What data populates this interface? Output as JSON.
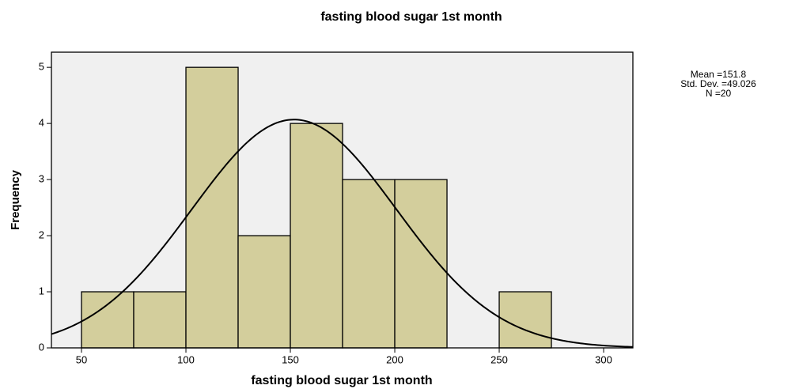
{
  "chart_data": {
    "type": "histogram",
    "title": "fasting blood sugar 1st month",
    "xlabel": "fasting blood sugar 1st month",
    "ylabel": "Frequency",
    "bins": [
      50,
      75,
      100,
      125,
      150,
      175,
      200,
      225,
      250,
      275
    ],
    "counts": [
      1,
      1,
      5,
      2,
      4,
      3,
      3,
      0,
      1
    ],
    "color": "#d3ce9c",
    "background": "#f0f0f0",
    "xlim": [
      35.6,
      314
    ],
    "xticks": [
      50,
      100,
      150,
      200,
      250,
      300
    ],
    "ylim": [
      0,
      5.27
    ],
    "yticks": [
      0,
      1,
      2,
      3,
      4,
      5
    ],
    "stats": [
      {
        "label": "Mean =",
        "value": 151.8
      },
      {
        "label": "Std. Dev. =",
        "value": 49.026
      },
      {
        "label": "N =",
        "value": 20
      }
    ]
  }
}
